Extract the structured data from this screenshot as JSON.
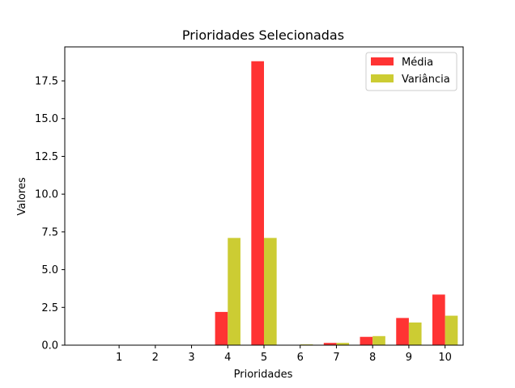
{
  "chart_data": {
    "type": "bar",
    "title": "Prioridades Selecionadas",
    "xlabel": "Prioridades",
    "ylabel": "Valores",
    "categories": [
      "1",
      "2",
      "3",
      "4",
      "5",
      "6",
      "7",
      "8",
      "9",
      "10"
    ],
    "series": [
      {
        "name": "Média",
        "color": "#ff3333",
        "values": [
          0,
          0,
          0,
          2.2,
          18.8,
          0,
          0.15,
          0.55,
          1.8,
          3.35
        ]
      },
      {
        "name": "Variância",
        "color": "#cccc33",
        "values": [
          0,
          0,
          0,
          7.1,
          7.1,
          0.05,
          0.15,
          0.6,
          1.5,
          1.95
        ]
      }
    ],
    "ylim": [
      0,
      19.75
    ],
    "yticks": [
      "0.0",
      "2.5",
      "5.0",
      "7.5",
      "10.0",
      "12.5",
      "15.0",
      "17.5"
    ],
    "grid": false,
    "legend": "top-right"
  }
}
